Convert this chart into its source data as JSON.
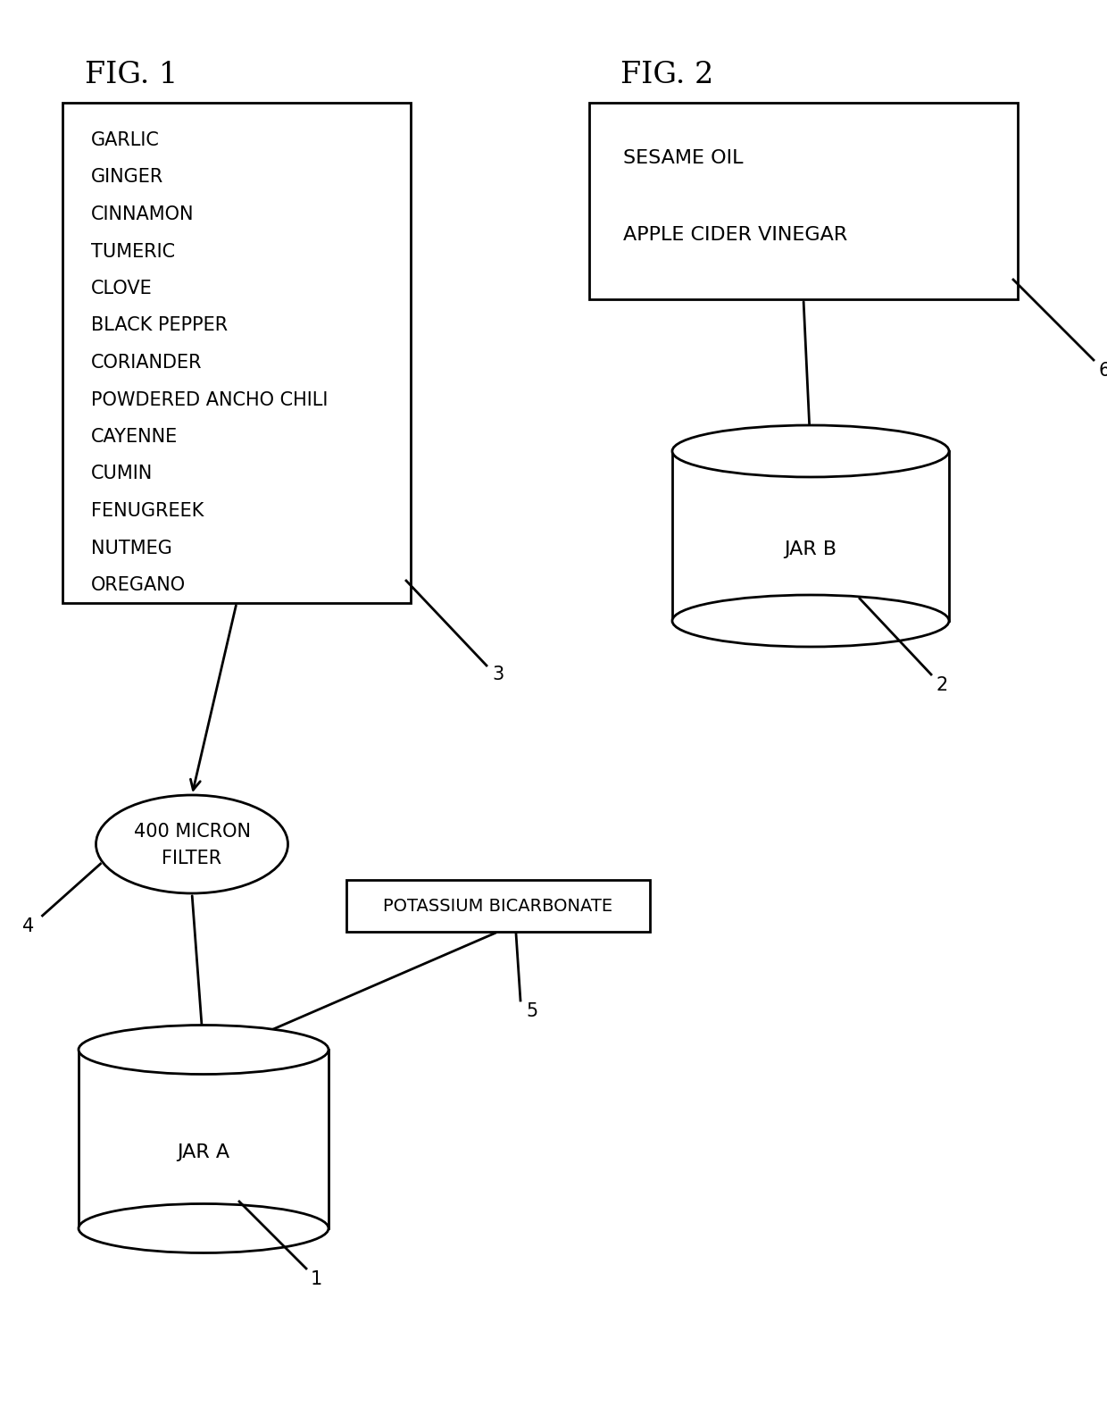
{
  "fig1_title": "FIG. 1",
  "fig2_title": "FIG. 2",
  "fig1_ingredients": [
    "GARLIC",
    "GINGER",
    "CINNAMON",
    "TUMERIC",
    "CLOVE",
    "BLACK PEPPER",
    "CORIANDER",
    "POWDERED ANCHO CHILI",
    "CAYENNE",
    "CUMIN",
    "FENUGREEK",
    "NUTMEG",
    "OREGANO"
  ],
  "fig2_line1": "SESAME OIL",
  "fig2_line2": "APPLE CIDER VINEGAR",
  "label_jar_a": "JAR A",
  "label_jar_b": "JAR B",
  "label_filter_line1": "400 MICRON",
  "label_filter_line2": "FILTER",
  "label_potassium": "POTASSIUM BICARBONATE",
  "ref_1": "1",
  "ref_2": "2",
  "ref_3": "3",
  "ref_4": "4",
  "ref_5": "5",
  "ref_6": "6",
  "bg_color": "#ffffff",
  "line_color": "#000000",
  "text_color": "#000000",
  "font_size_title": 24,
  "font_size_label": 15,
  "font_size_ref": 15,
  "lw": 2.0
}
